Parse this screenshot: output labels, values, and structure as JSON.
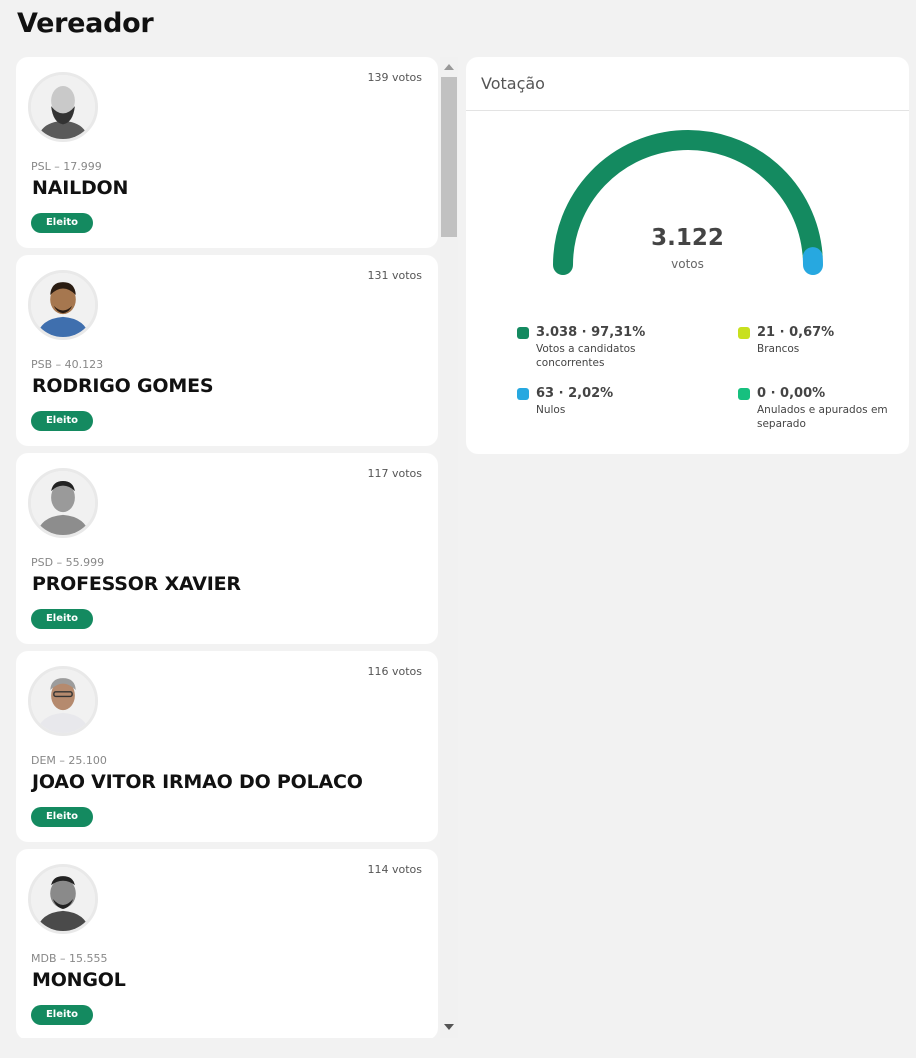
{
  "page": {
    "title": "Vereador"
  },
  "candidates": [
    {
      "votes": "139 votos",
      "party": "PSL – 17.999",
      "name": "NAILDON",
      "status": "Eleito"
    },
    {
      "votes": "131 votos",
      "party": "PSB – 40.123",
      "name": "RODRIGO GOMES",
      "status": "Eleito"
    },
    {
      "votes": "117 votos",
      "party": "PSD – 55.999",
      "name": "PROFESSOR XAVIER",
      "status": "Eleito"
    },
    {
      "votes": "116 votos",
      "party": "DEM – 25.100",
      "name": "JOAO VITOR IRMAO DO POLACO",
      "status": "Eleito"
    },
    {
      "votes": "114 votos",
      "party": "MDB – 15.555",
      "name": "MONGOL",
      "status": "Eleito"
    }
  ],
  "votacao": {
    "title": "Votação",
    "total": "3.122",
    "total_label": "votos",
    "legend": [
      {
        "value": "3.038 · 97,31%",
        "label": "Votos a candidatos concorrentes",
        "color": "#148a60"
      },
      {
        "value": "21 · 0,67%",
        "label": "Brancos",
        "color": "#c8e01e"
      },
      {
        "value": "63 · 2,02%",
        "label": "Nulos",
        "color": "#27a8e0"
      },
      {
        "value": "0 · 0,00%",
        "label": "Anulados e apurados em separado",
        "color": "#17c07f"
      }
    ]
  },
  "chart_data": {
    "type": "pie",
    "total": 3122,
    "series": [
      {
        "name": "Votos a candidatos concorrentes",
        "value": 3038,
        "percent": 97.31
      },
      {
        "name": "Brancos",
        "value": 21,
        "percent": 0.67
      },
      {
        "name": "Nulos",
        "value": 63,
        "percent": 2.02
      },
      {
        "name": "Anulados e apurados em separado",
        "value": 0,
        "percent": 0.0
      }
    ]
  },
  "colors": {
    "accent": "#148a60",
    "brancos": "#c8e01e",
    "nulos": "#27a8e0",
    "anulados": "#17c07f"
  }
}
